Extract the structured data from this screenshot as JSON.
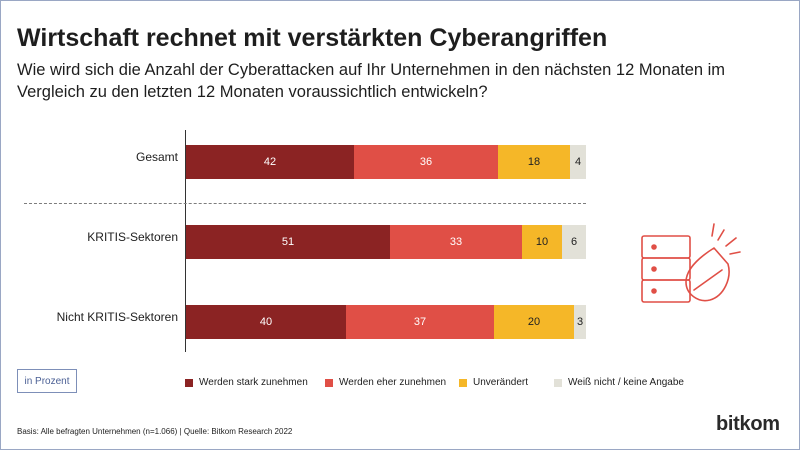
{
  "header": {
    "title": "Wirtschaft rechnet mit verstärkten Cyberangriffen",
    "subtitle": "Wie wird sich die Anzahl der Cyberattacken auf Ihr Unternehmen in den nächsten 12 Monaten im Vergleich zu den letzten 12 Monaten voraussichtlich entwickeln?"
  },
  "chart_data": {
    "type": "bar",
    "orientation": "horizontal",
    "stacked": true,
    "categories": [
      "Gesamt",
      "KRITIS-Sektoren",
      "Nicht KRITIS-Sektoren"
    ],
    "series": [
      {
        "name": "Werden stark zunehmen",
        "values": [
          42,
          51,
          40
        ],
        "color": "#8b2323"
      },
      {
        "name": "Werden eher zunehmen",
        "values": [
          36,
          33,
          37
        ],
        "color": "#e04f46"
      },
      {
        "name": "Unverändert",
        "values": [
          18,
          10,
          20
        ],
        "color": "#f5b728"
      },
      {
        "name": "Weiß nicht / keine Angabe",
        "values": [
          4,
          6,
          3
        ],
        "color": "#e2e1d8"
      }
    ],
    "unit_label": "in Prozent",
    "legend_position": "bottom",
    "grid": false
  },
  "footer": {
    "source": "Basis: Alle befragten Unternehmen (n=1.066) | Quelle: Bitkom Research 2022",
    "logo": "bitkom"
  },
  "icons": {
    "illustration": "server-attack-icon"
  }
}
